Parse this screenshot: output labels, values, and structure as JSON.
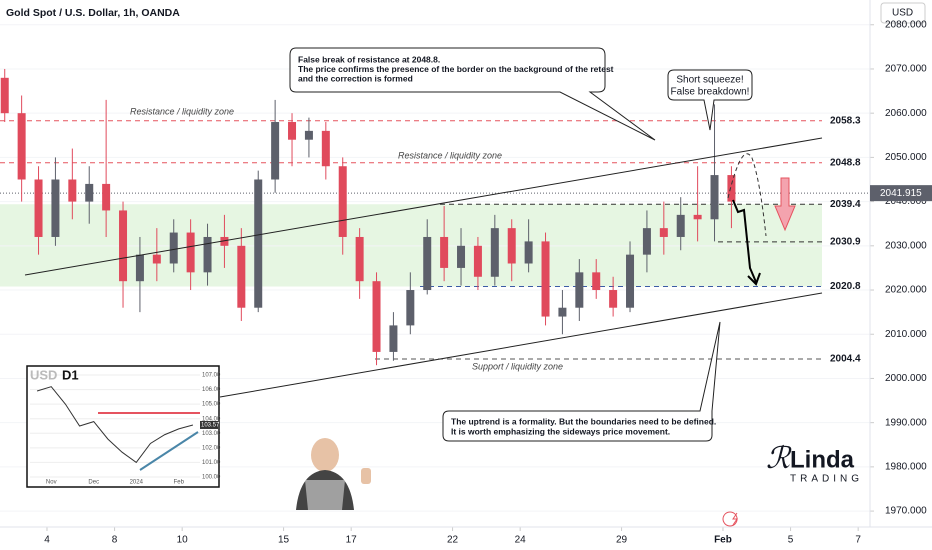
{
  "chart_data": {
    "type": "candlestick",
    "title": "Gold Spot / U.S. Dollar, 1h, OANDA",
    "currency": "USD",
    "up_color": "#5d606b",
    "down_color": "#e04a5c",
    "x": [
      -1.25,
      -0.75,
      -0.25,
      0.25,
      0.75,
      1.25,
      1.75,
      2.25,
      2.75,
      3.25,
      3.75,
      4.25,
      4.75,
      5.25,
      5.75,
      6.25,
      6.75,
      7.25,
      7.75,
      8.25,
      8.75,
      9.25,
      9.75,
      10.25,
      10.75,
      11.25,
      11.75,
      12.25,
      12.75,
      13.25,
      13.75,
      14.25,
      14.75,
      15.25,
      15.75,
      16.25,
      16.75,
      17.25,
      17.75,
      18.25,
      18.75,
      19.25,
      19.75,
      20.25
    ],
    "open": [
      2068,
      2060,
      2045,
      2032,
      2045,
      2040,
      2044,
      2038,
      2022,
      2028,
      2026,
      2033,
      2024,
      2032,
      2030,
      2016,
      2045,
      2058,
      2054,
      2056,
      2048,
      2032,
      2022,
      2006,
      2012,
      2020,
      2032,
      2025,
      2030,
      2023,
      2034,
      2026,
      2031,
      2014,
      2016,
      2024,
      2020,
      2016,
      2028,
      2034,
      2032,
      2037,
      2036,
      2046
    ],
    "high": [
      2070,
      2064,
      2048,
      2050,
      2052,
      2048,
      2063,
      2040,
      2032,
      2034,
      2036,
      2036,
      2035,
      2037,
      2034,
      2047,
      2063,
      2060,
      2059,
      2058,
      2050,
      2034,
      2024,
      2015,
      2024,
      2036,
      2039,
      2034,
      2032,
      2037,
      2036,
      2036,
      2033,
      2020,
      2027,
      2027,
      2023,
      2031,
      2038,
      2040,
      2041,
      2048,
      2062,
      2048
    ],
    "low": [
      2058,
      2040,
      2028,
      2030,
      2036,
      2035,
      2032,
      2016,
      2015,
      2022,
      2024,
      2020,
      2021,
      2025,
      2013,
      2015,
      2042,
      2048,
      2050,
      2045,
      2028,
      2018,
      2003,
      2004,
      2010,
      2019,
      2022,
      2021,
      2020,
      2021,
      2022,
      2024,
      2012,
      2010,
      2013,
      2018,
      2014,
      2015,
      2024,
      2028,
      2029,
      2031,
      2031,
      2034
    ],
    "close": [
      2060,
      2045,
      2032,
      2045,
      2040,
      2044,
      2038,
      2022,
      2028,
      2026,
      2033,
      2024,
      2032,
      2030,
      2016,
      2045,
      2058,
      2054,
      2056,
      2048,
      2032,
      2022,
      2006,
      2012,
      2020,
      2032,
      2025,
      2030,
      2023,
      2034,
      2026,
      2031,
      2014,
      2016,
      2024,
      2020,
      2016,
      2028,
      2034,
      2032,
      2037,
      2036,
      2046,
      2040
    ],
    "xlim": [
      -1.39,
      24.35
    ],
    "xticks": [
      {
        "value": 0,
        "label": "4"
      },
      {
        "value": 2,
        "label": "8"
      },
      {
        "value": 4,
        "label": "10"
      },
      {
        "value": 7,
        "label": "15"
      },
      {
        "value": 9,
        "label": "17"
      },
      {
        "value": 12,
        "label": "22"
      },
      {
        "value": 14,
        "label": "24"
      },
      {
        "value": 17,
        "label": "29"
      },
      {
        "value": 20,
        "label": "Feb"
      },
      {
        "value": 22,
        "label": "5"
      },
      {
        "value": 24,
        "label": "7"
      }
    ],
    "ylim": [
      1966.4,
      2085.6
    ],
    "yticks": [
      {
        "value": 1970,
        "label": "1970.000"
      },
      {
        "value": 1980,
        "label": "1980.000"
      },
      {
        "value": 1990,
        "label": "1990.000"
      },
      {
        "value": 2000,
        "label": "2000.000"
      },
      {
        "value": 2010,
        "label": "2010.000"
      },
      {
        "value": 2020,
        "label": "2020.000"
      },
      {
        "value": 2030,
        "label": "2030.000"
      },
      {
        "value": 2040,
        "label": "2040.000"
      },
      {
        "value": 2050,
        "label": "2050.000"
      },
      {
        "value": 2060,
        "label": "2060.000"
      },
      {
        "value": 2070,
        "label": "2070.000"
      },
      {
        "value": 2080,
        "label": "2080.000"
      }
    ],
    "last_price": 2041.915,
    "levels": [
      {
        "value": 2058.3,
        "color": "#e5535f"
      },
      {
        "value": 2048.8,
        "color": "#e5535f"
      },
      {
        "value": 2039.4,
        "color": "#333333"
      },
      {
        "value": 2030.9,
        "color": "#333333"
      },
      {
        "value": 2020.8,
        "color": "#3b5ba5"
      },
      {
        "value": 2004.4,
        "color": "#555555"
      }
    ],
    "zone_labels": [
      "Resistance / liquidity zone",
      "Resistance / liquidity zone",
      "Support / liquidity zone"
    ],
    "callout_top": [
      "False break of resistance at 2048.8.",
      "The price confirms the presence of the border on the background of the retest",
      "and the correction is formed"
    ],
    "callout_squeeze": [
      "Short squeeze!",
      "False breakdown!"
    ],
    "callout_bottom": [
      "The uptrend is a formality. But the boundaries need to be defined.",
      "It is worth emphasizing the sideways price movement."
    ]
  },
  "inset": {
    "currency": "USD",
    "timeframe": "D1",
    "categories": [
      null,
      "Nov",
      null,
      null,
      "Dec",
      null,
      null,
      "2024",
      null,
      null,
      "Feb",
      null
    ],
    "values": [
      105.9,
      106.2,
      105.0,
      103.5,
      103.8,
      102.6,
      101.7,
      101.0,
      102.3,
      102.9,
      103.3,
      103.57
    ],
    "ylim": [
      99.45,
      107.48
    ],
    "yticks": [
      {
        "value": 100,
        "label": "100.00"
      },
      {
        "value": 101,
        "label": "101.00"
      },
      {
        "value": 102,
        "label": "102.00"
      },
      {
        "value": 103,
        "label": "103.00"
      },
      {
        "value": 104,
        "label": "104.00"
      },
      {
        "value": 105,
        "label": "105.00"
      },
      {
        "value": 106,
        "label": "106.00"
      },
      {
        "value": 107,
        "label": "107.00"
      }
    ],
    "last": 103.57
  },
  "logo": {
    "name": "Linda",
    "sub": "TRADING"
  }
}
